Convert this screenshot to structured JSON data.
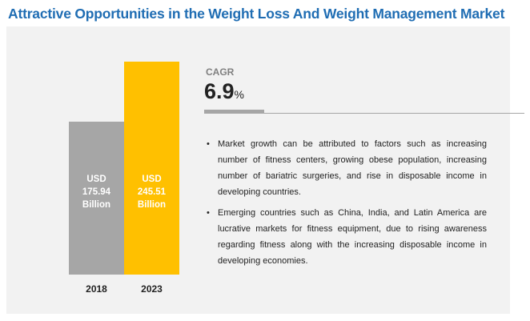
{
  "chart_data": {
    "type": "bar",
    "title": "Attractive Opportunities in the Weight Loss And Weight Management Market",
    "categories": [
      "2018",
      "2023"
    ],
    "values": [
      175.94,
      245.51
    ],
    "value_labels": [
      "USD 175.94 Billion",
      "USD 245.51 Billion"
    ],
    "colors": [
      "#a6a6a6",
      "#ffc000"
    ],
    "cagr": {
      "label": "CAGR",
      "value": 6.9,
      "unit": "%"
    },
    "bullets": [
      "Market growth can be attributed to factors such as increasing number of fitness centers, growing obese population, increasing number of bariatric surgeries, and rise in disposable income in developing countries.",
      "Emerging countries such as China, India, and Latin America are lucrative markets for fitness equipment, due to rising awareness regarding fitness along with the increasing disposable income in developing economies."
    ]
  }
}
